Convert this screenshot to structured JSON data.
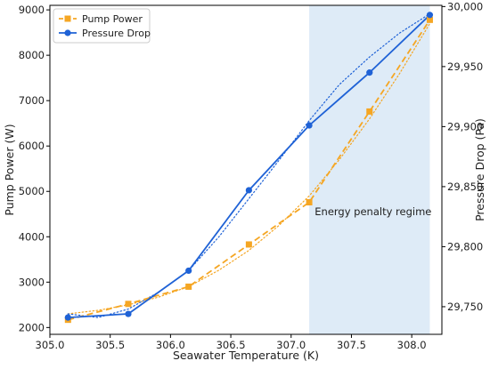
{
  "chart_data": {
    "type": "line",
    "xlabel": "Seawater Temperature (K)",
    "ylabel_left": "Pump Power (W)",
    "ylabel_right": "Pressure Drop (Pa)",
    "xlim": [
      305.0,
      308.25
    ],
    "ylim_left": [
      1850,
      9100
    ],
    "ylim_right": [
      29727,
      30001
    ],
    "x_ticks": [
      305.0,
      305.5,
      306.0,
      306.5,
      307.0,
      307.5,
      308.0
    ],
    "x_tick_labels": [
      "305.0",
      "305.5",
      "306.0",
      "306.5",
      "307.0",
      "307.5",
      "308.0"
    ],
    "y_left_ticks": [
      2000,
      3000,
      4000,
      5000,
      6000,
      7000,
      8000,
      9000
    ],
    "y_left_tick_labels": [
      "2000",
      "3000",
      "4000",
      "5000",
      "6000",
      "7000",
      "8000",
      "9000"
    ],
    "y_right_ticks": [
      29750,
      29800,
      29850,
      29900,
      29950,
      30000
    ],
    "y_right_tick_labels": [
      "29,750",
      "29,800",
      "29,850",
      "29,900",
      "29,950",
      "30,000"
    ],
    "grid": false,
    "legend_placement": "top-left",
    "series": [
      {
        "name": "Pump Power",
        "axis": "left",
        "color": "#f5a623",
        "marker": "square",
        "line_style": "dashed",
        "x": [
          305.15,
          305.65,
          306.15,
          306.65,
          307.15,
          307.65,
          308.15
        ],
        "y": [
          2170,
          2520,
          2900,
          3830,
          4760,
          6760,
          8780
        ]
      },
      {
        "name": "Pressure Drop",
        "axis": "right",
        "color": "#1f62d6",
        "marker": "circle",
        "line_style": "solid",
        "x": [
          305.15,
          305.65,
          306.15,
          306.65,
          307.15,
          307.65,
          308.15
        ],
        "y": [
          29741,
          29744,
          29780,
          29847,
          29901,
          29945,
          29993
        ]
      }
    ],
    "fit_curves": [
      {
        "of_series": "Pump Power",
        "axis": "left",
        "color": "#f5a623",
        "line_style": "dotted",
        "x": [
          305.15,
          305.4,
          305.65,
          305.9,
          306.15,
          306.4,
          306.65,
          306.9,
          307.15,
          307.4,
          307.65,
          307.9,
          308.15
        ],
        "y": [
          2300,
          2380,
          2500,
          2670,
          2900,
          3260,
          3700,
          4250,
          4900,
          5700,
          6600,
          7600,
          8700
        ]
      },
      {
        "of_series": "Pressure Drop",
        "axis": "right",
        "color": "#1f62d6",
        "line_style": "dotted",
        "x": [
          305.15,
          305.4,
          305.65,
          305.9,
          306.15,
          306.4,
          306.65,
          306.9,
          307.15,
          307.4,
          307.65,
          307.9,
          308.15
        ],
        "y": [
          29744,
          29741,
          29748,
          29762,
          29780,
          29808,
          29840,
          29872,
          29905,
          29935,
          29958,
          29978,
          29994
        ]
      }
    ],
    "shaded_region": {
      "x_start": 307.15,
      "x_end": 308.15,
      "color": "#deebf7"
    },
    "annotations": [
      {
        "text": "Energy penalty regime",
        "x": 307.68,
        "y_left": 4480
      }
    ]
  }
}
